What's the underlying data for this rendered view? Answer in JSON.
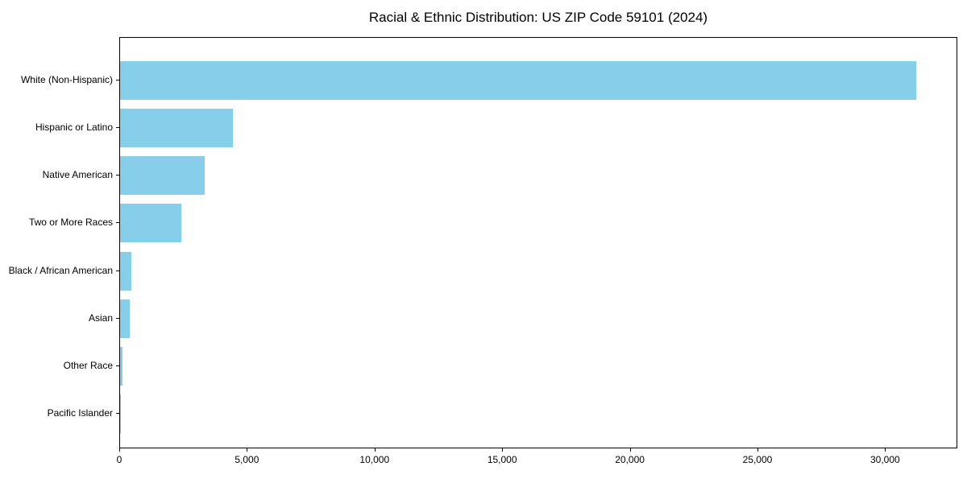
{
  "chart_data": {
    "type": "bar",
    "orientation": "horizontal",
    "title": "Racial & Ethnic Distribution: US ZIP Code 59101 (2024)",
    "categories": [
      "White (Non-Hispanic)",
      "Hispanic or Latino",
      "Native American",
      "Two or More Races",
      "Black / African American",
      "Asian",
      "Other Race",
      "Pacific Islander"
    ],
    "values": [
      31200,
      4420,
      3310,
      2390,
      435,
      380,
      95,
      20
    ],
    "xlabel": "",
    "ylabel": "",
    "xlim": [
      0,
      32830
    ],
    "xticks": [
      0,
      5000,
      10000,
      15000,
      20000,
      25000,
      30000
    ],
    "xtick_labels": [
      "0",
      "5,000",
      "10,000",
      "15,000",
      "20,000",
      "25,000",
      "30,000"
    ],
    "bar_color": "#87CEEB",
    "grid": false,
    "legend": null
  }
}
